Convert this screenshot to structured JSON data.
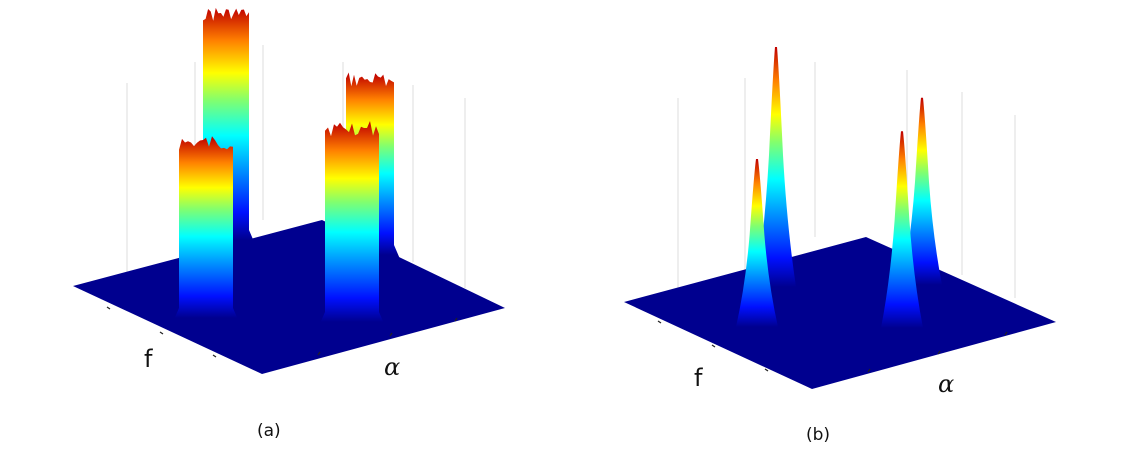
{
  "chart_data": [
    {
      "type": "surface",
      "caption": "(a)",
      "xlabel": "f",
      "ylabel": "α",
      "zlabel": "",
      "grid": true,
      "colormap": "jet",
      "colors": {
        "low": "#00008f",
        "high": "#c00000"
      },
      "peaks": [
        {
          "shape": "plateau",
          "height": 1.0
        },
        {
          "shape": "plateau",
          "height": 0.78
        },
        {
          "shape": "plateau",
          "height": 0.86
        },
        {
          "shape": "plateau",
          "height": 0.78
        }
      ]
    },
    {
      "type": "surface",
      "caption": "(b)",
      "xlabel": "f",
      "ylabel": "α",
      "zlabel": "",
      "grid": true,
      "colormap": "jet",
      "colors": {
        "low": "#00008f",
        "high": "#c00000"
      },
      "peaks": [
        {
          "shape": "spike",
          "height": 1.0
        },
        {
          "shape": "spike",
          "height": 0.7
        },
        {
          "shape": "spike",
          "height": 0.82
        },
        {
          "shape": "spike",
          "height": 0.78
        }
      ]
    }
  ]
}
